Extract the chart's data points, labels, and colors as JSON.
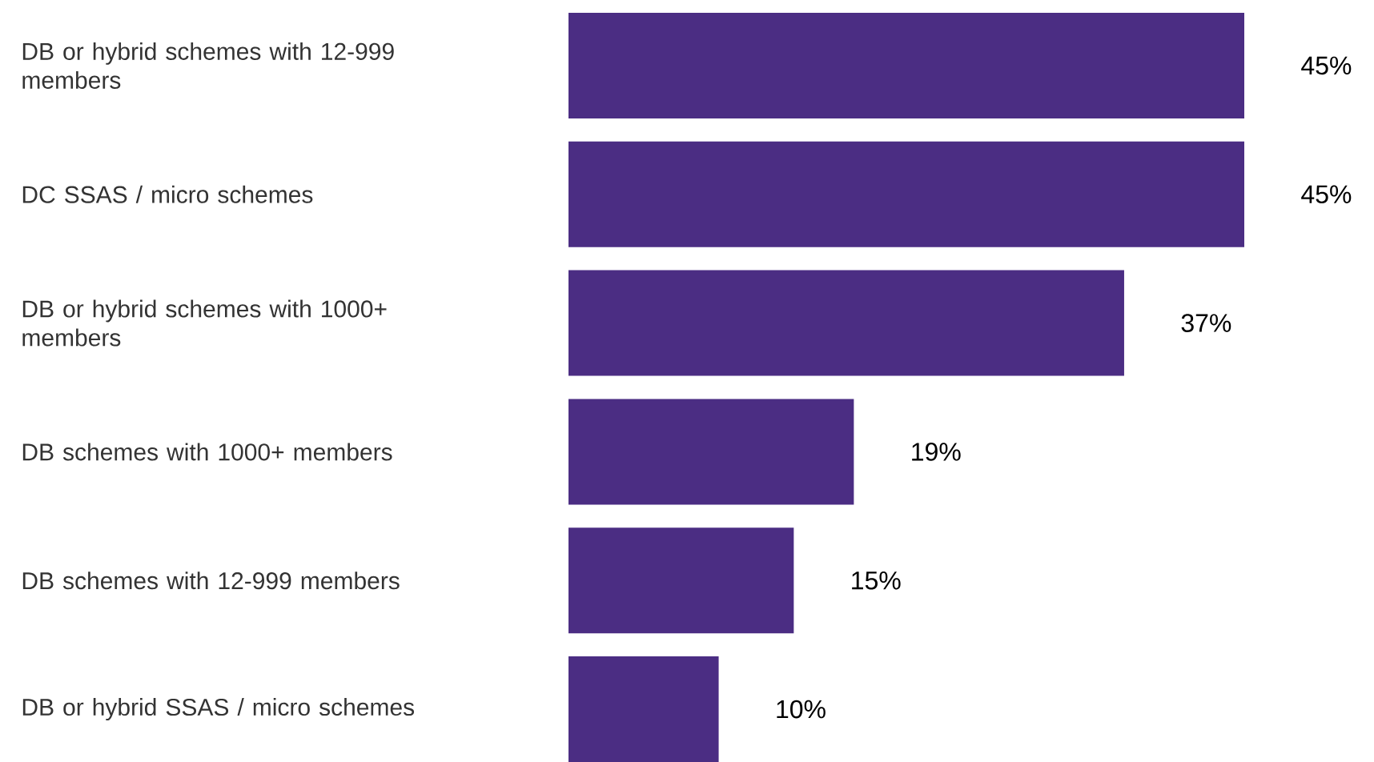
{
  "chart_data": {
    "type": "bar",
    "orientation": "horizontal",
    "categories": [
      "DB or hybrid schemes with 12-999 members",
      "DC SSAS / micro schemes",
      "DB or hybrid schemes with 1000+ members",
      "DB schemes with 1000+ members",
      "DB schemes with 12-999 members",
      "DB or hybrid SSAS / micro schemes"
    ],
    "values": [
      45,
      45,
      37,
      19,
      15,
      10
    ],
    "value_labels": [
      "45%",
      "45%",
      "37%",
      "19%",
      "15%",
      "10%"
    ],
    "color": "#4b2d83"
  }
}
